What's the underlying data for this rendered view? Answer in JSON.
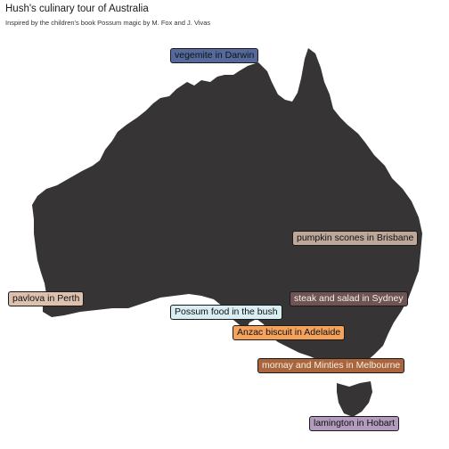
{
  "title": "Hush's culinary tour of Australia",
  "subtitle": "Inspired by the children's book Possum magic by M. Fox and J. Vivas",
  "colors": {
    "land": "#363434",
    "background": "#ffffff"
  },
  "labels": [
    {
      "id": "darwin",
      "text": "vegemite in Darwin",
      "fill": "#55699c"
    },
    {
      "id": "brisbane",
      "text": "pumpkin scones in Brisbane",
      "fill": "#bca799"
    },
    {
      "id": "perth",
      "text": "pavlova in Perth",
      "fill": "#ddc0ad"
    },
    {
      "id": "sydney",
      "text": "steak and salad in Sydney",
      "fill": "#6e5453"
    },
    {
      "id": "bush",
      "text": "Possum food in the bush",
      "fill": "#d9eef2"
    },
    {
      "id": "adelaide",
      "text": "Anzac biscuit in Adelaide",
      "fill": "#f5a25d"
    },
    {
      "id": "melbourne",
      "text": "mornay and Minties in Melbourne",
      "fill": "#a9663d"
    },
    {
      "id": "hobart",
      "text": "lamington in Hobart",
      "fill": "#b29bbc"
    }
  ]
}
